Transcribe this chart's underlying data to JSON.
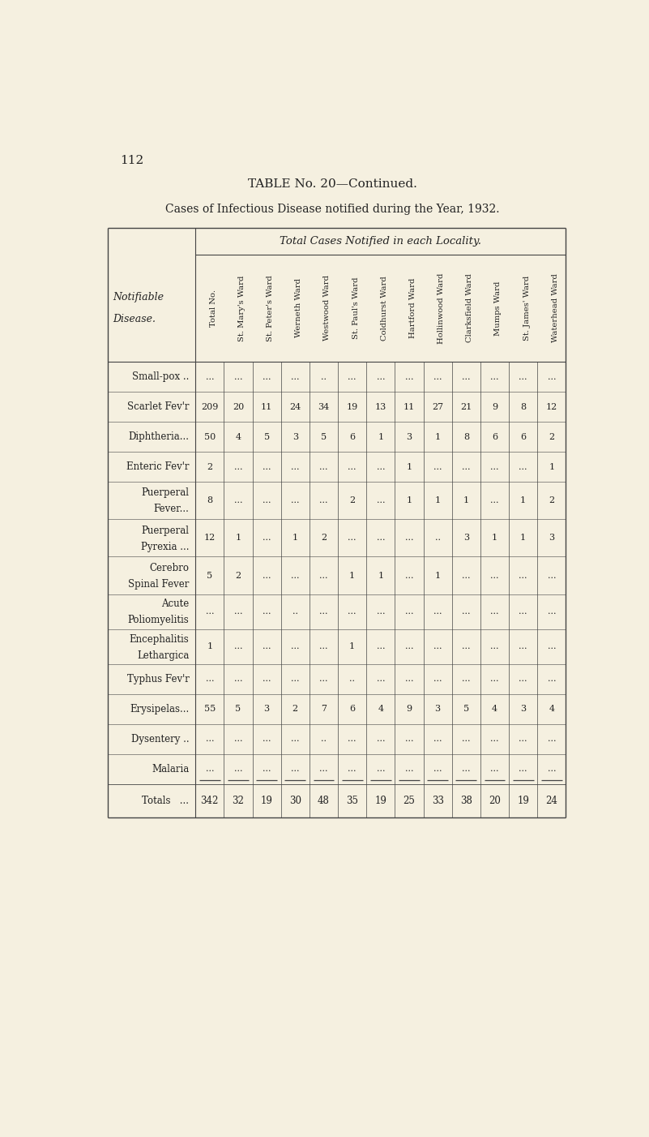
{
  "page_number": "112",
  "title1": "TABLE No. 20—Continued.",
  "title2": "Cases of Infectious Disease notified during the Year, 1932.",
  "section_header": "Total Cases Notified in each Locality.",
  "col_headers": [
    "Total No.",
    "St. Mary's Ward",
    "St. Peter's Ward",
    "Werneth Ward",
    "Westwood Ward",
    "St. Paul's Ward",
    "Coldhurst Ward",
    "Hartford Ward",
    "Hollinwood Ward",
    "Clarksfield Ward",
    "Mumps Ward",
    "St. James' Ward",
    "Waterhead Ward"
  ],
  "diseases": [
    "Small-pox ..",
    "Scarlet Fev'r",
    "Diphtheria...",
    "Enteric Fev'r",
    "Puerperal\nFever...",
    "Puerperal\nPyrexia ...",
    "Cerebro\nSpinal Fever",
    "Acute\nPoliomyelitis",
    "Encephalitis\nLethargica",
    "Typhus Fev'r",
    "Erysipelas...",
    "Dysentery ..",
    "Malaria"
  ],
  "data": [
    [
      "...",
      "...",
      "...",
      "...",
      "..",
      "...",
      "...",
      "...",
      "...",
      "...",
      "...",
      "...",
      "..."
    ],
    [
      "209",
      "20",
      "11",
      "24",
      "34",
      "19",
      "13",
      "11",
      "27",
      "21",
      "9",
      "8",
      "12"
    ],
    [
      "50",
      "4",
      "5",
      "3",
      "5",
      "6",
      "1",
      "3",
      "1",
      "8",
      "6",
      "6",
      "2"
    ],
    [
      "2",
      "...",
      "...",
      "...",
      "...",
      "...",
      "...",
      "1",
      "...",
      "...",
      "...",
      "...",
      "1"
    ],
    [
      "8",
      "...",
      "...",
      "...",
      "...",
      "2",
      "...",
      "1",
      "1",
      "1",
      "...",
      "1",
      "2"
    ],
    [
      "12",
      "1",
      "...",
      "1",
      "2",
      "...",
      "...",
      "...",
      "..",
      "3",
      "1",
      "1",
      "3"
    ],
    [
      "5",
      "2",
      "...",
      "...",
      "...",
      "1",
      "1",
      "...",
      "1",
      "...",
      "...",
      "...",
      "..."
    ],
    [
      "...",
      "...",
      "...",
      "..",
      "...",
      "...",
      "...",
      "...",
      "...",
      "...",
      "...",
      "...",
      "..."
    ],
    [
      "1",
      "...",
      "...",
      "...",
      "...",
      "1",
      "...",
      "...",
      "...",
      "...",
      "...",
      "...",
      "..."
    ],
    [
      "...",
      "...",
      "...",
      "...",
      "...",
      "..",
      "...",
      "...",
      "...",
      "...",
      "...",
      "...",
      "..."
    ],
    [
      "55",
      "5",
      "3",
      "2",
      "7",
      "6",
      "4",
      "9",
      "3",
      "5",
      "4",
      "3",
      "4"
    ],
    [
      "...",
      "...",
      "...",
      "...",
      "..",
      "...",
      "...",
      "...",
      "...",
      "...",
      "...",
      "...",
      "..."
    ],
    [
      "...",
      "...",
      "...",
      "...",
      "...",
      "...",
      "...",
      "...",
      "...",
      "...",
      "...",
      "...",
      "..."
    ]
  ],
  "totals_label": "Totals   ...",
  "totals": [
    "342",
    "32",
    "19",
    "30",
    "48",
    "35",
    "19",
    "25",
    "33",
    "38",
    "20",
    "19",
    "24"
  ],
  "bg_color": "#f5f0e0",
  "text_color": "#222222",
  "line_color": "#444444"
}
